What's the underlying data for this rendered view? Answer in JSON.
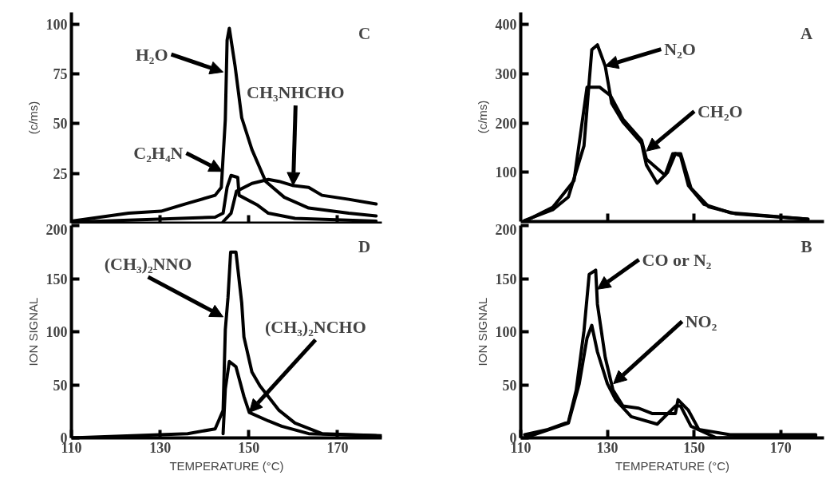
{
  "chart_data": [
    {
      "type": "line",
      "title": "C",
      "ylabel": "(c/ms)",
      "xlim": [
        110,
        180
      ],
      "ylim": [
        0,
        106
      ],
      "xticks": [
        130,
        150,
        170
      ],
      "yticks": [
        25,
        50,
        75,
        100
      ],
      "tick_labels": "y",
      "series": [
        {
          "color": "#000000",
          "x": [
            110,
            122.9,
            130.2,
            136.2,
            142.4,
            143.8,
            144.7,
            145.1,
            145.6,
            146.9,
            148.4,
            150.7,
            153.8,
            158,
            163.5,
            172.5,
            178.7
          ],
          "values": [
            1,
            5,
            6,
            10,
            14,
            18,
            52,
            92,
            98,
            79,
            53,
            37,
            21,
            13,
            7.6,
            5,
            3.6
          ]
        },
        {
          "color": "#000000",
          "x": [
            110,
            142.4,
            144.2,
            145.1,
            146,
            147.5,
            147.8,
            152,
            154.4,
            160.4,
            178.7
          ],
          "values": [
            0.5,
            3,
            5,
            18,
            24,
            23,
            14,
            9,
            5,
            2.4,
            1
          ]
        },
        {
          "color": "#000000",
          "x": [
            144.2,
            146,
            147.2,
            150.7,
            154.4,
            156.8,
            159.8,
            163.5,
            166.5,
            172.5,
            178.7
          ],
          "values": [
            0.7,
            5,
            16,
            20,
            22,
            21,
            19,
            18,
            14,
            12,
            9.6
          ]
        }
      ],
      "annotations": [
        {
          "text": "H₂O",
          "x": 144.2,
          "y": 76
        },
        {
          "text": "C₂H₄N",
          "x": 144,
          "y": 26
        },
        {
          "text": "CH₃NHCHO",
          "x": 160,
          "y": 19
        }
      ]
    },
    {
      "type": "line",
      "title": "A",
      "ylabel": "(c/ms)",
      "xlim": [
        110,
        180
      ],
      "ylim": [
        0,
        425
      ],
      "xticks": [
        130,
        150,
        170
      ],
      "yticks": [
        100,
        200,
        300,
        400
      ],
      "tick_labels": "y",
      "series": [
        {
          "color": "#000000",
          "x": [
            110.8,
            117.4,
            121,
            124.6,
            126.4,
            127.7,
            129.5,
            131,
            133.6,
            137.9,
            139,
            141.5,
            143.9,
            145.7,
            146.9,
            148.7,
            152.3,
            158.3,
            176.3
          ],
          "values": [
            2,
            24,
            50,
            154,
            349,
            359,
            316,
            240,
            202,
            159,
            115,
            78,
            100,
            138,
            133,
            73,
            35,
            18,
            5
          ]
        },
        {
          "color": "#000000",
          "x": [
            110.8,
            117.4,
            122.3,
            125.3,
            128.2,
            130.7,
            133.6,
            137.9,
            139,
            143.3,
            145.1,
            146.9,
            149.3,
            153.4,
            159.5,
            176.3
          ],
          "values": [
            0,
            29,
            83,
            273,
            273,
            256,
            208,
            165,
            127,
            94,
            138,
            138,
            68,
            30,
            16,
            5
          ]
        }
      ],
      "annotations": [
        {
          "text": "N₂O",
          "x": 129.5,
          "y": 316
        },
        {
          "text": "CH₂O",
          "x": 139,
          "y": 143
        }
      ]
    },
    {
      "type": "line",
      "title": "D",
      "xlabel": "TEMPERATURE (°C)",
      "ylabel": "ION SIGNAL",
      "xlim": [
        110,
        180
      ],
      "ylim": [
        0,
        200
      ],
      "xticks": [
        110,
        130,
        150,
        170
      ],
      "yticks": [
        0,
        50,
        100,
        150,
        200
      ],
      "series": [
        {
          "color": "#000000",
          "x": [
            110,
            136.2,
            142.4,
            144.2,
            144.7,
            145.3,
            145.9,
            147.1,
            148.4,
            148.9,
            150.7,
            152.5,
            156.8,
            160.4,
            166.5,
            179.9
          ],
          "values": [
            0,
            4,
            8.5,
            26,
            102,
            132,
            175,
            175,
            127,
            95,
            62,
            49,
            26,
            14,
            4,
            2
          ]
        },
        {
          "color": "#000000",
          "x": [
            144.2,
            144.7,
            145.6,
            147.1,
            148.9,
            150.1,
            154.4,
            157.4,
            163.5,
            178.7
          ],
          "values": [
            4,
            46,
            72,
            67,
            39,
            24,
            16,
            11,
            4,
            2
          ]
        }
      ],
      "annotations": [
        {
          "text": "(CH₃)₂NNO",
          "x": 144.2,
          "y": 114
        },
        {
          "text": "(CH₃)₂NCHO",
          "x": 150.1,
          "y": 24
        }
      ]
    },
    {
      "type": "line",
      "title": "B",
      "xlabel": "TEMPERATURE (°C)",
      "ylabel": "ION SIGNAL",
      "xlim": [
        110,
        180
      ],
      "ylim": [
        0,
        200
      ],
      "xticks": [
        110,
        130,
        150,
        170
      ],
      "yticks": [
        0,
        50,
        100,
        150,
        200
      ],
      "series": [
        {
          "color": "#000000",
          "x": [
            110.9,
            116.3,
            121,
            122.8,
            124.6,
            125.8,
            127.3,
            127.7,
            129.5,
            131.3,
            133.6,
            137.2,
            140.3,
            145.7,
            146.3,
            148.7,
            151.1,
            158.3,
            178.1
          ],
          "values": [
            3,
            8,
            15,
            45,
            101,
            154,
            158,
            126,
            76,
            45,
            30,
            28,
            23,
            23,
            36,
            26,
            8,
            3,
            3
          ]
        },
        {
          "color": "#000000",
          "x": [
            110.9,
            121,
            123.5,
            125.3,
            126.4,
            127.7,
            130,
            131.9,
            135.5,
            141.5,
            145.7,
            146.9,
            149.3,
            155.2,
            178.1
          ],
          "values": [
            0,
            14,
            51,
            94,
            106,
            81,
            51,
            36,
            20,
            13,
            30,
            30,
            11,
            0,
            2
          ]
        }
      ],
      "annotations": [
        {
          "text": "CO or N₂",
          "x": 127.7,
          "y": 140
        },
        {
          "text": "NO₂",
          "x": 131.4,
          "y": 51
        }
      ]
    }
  ]
}
